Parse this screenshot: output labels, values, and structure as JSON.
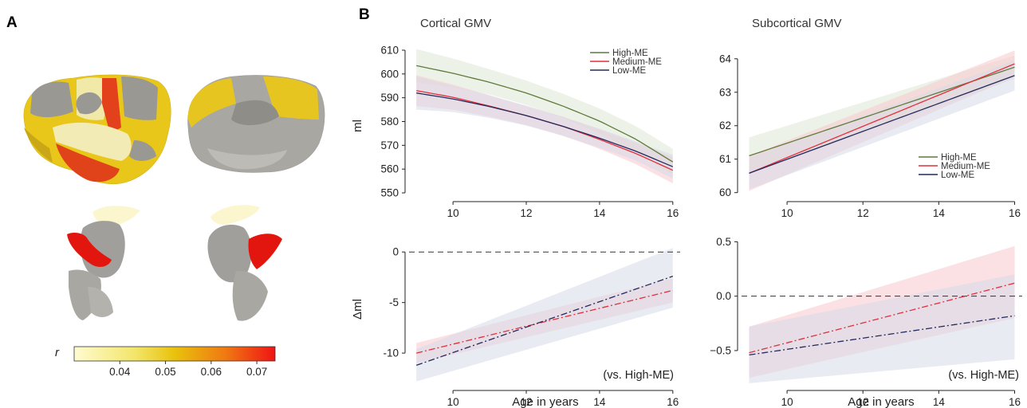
{
  "panel_a": {
    "letter": "A",
    "colorbar": {
      "label": "r",
      "ticks": [
        "0.04",
        "0.05",
        "0.06",
        "0.07"
      ],
      "tick_values": [
        0.04,
        0.05,
        0.06,
        0.07
      ],
      "range": [
        0.03,
        0.074
      ],
      "colors": [
        "#fffbd0",
        "#f3e66b",
        "#e9c20c",
        "#f07a12",
        "#f01414"
      ]
    }
  },
  "panel_b": {
    "letter": "B"
  },
  "colors": {
    "High-ME": "#5f7a3a",
    "Medium-ME": "#e0303c",
    "Low-ME": "#232a5c",
    "High-ME_band": "#dfe8d6",
    "Medium-ME_band": "#f7c9cd",
    "Low-ME_band": "#d7dae8"
  },
  "chart_data": [
    {
      "id": "cortical_top",
      "type": "line",
      "title": "Cortical GMV",
      "ylabel": "ml",
      "xlabel": "",
      "xlim": [
        8.8,
        16.2
      ],
      "ylim": [
        548,
        612
      ],
      "xticks": [
        10,
        12,
        14,
        16
      ],
      "yticks": [
        550,
        560,
        570,
        580,
        590,
        600,
        610
      ],
      "legend_placement": "top-right",
      "series": [
        {
          "name": "High-ME",
          "x": [
            9,
            10,
            11,
            12,
            13,
            14,
            15,
            16
          ],
          "y": [
            603.5,
            600.3,
            596.5,
            592.0,
            586.5,
            580.2,
            572.5,
            563.0
          ],
          "lo": [
            596.5,
            594.3,
            591.3,
            587.0,
            581.5,
            575.0,
            567.0,
            557.5
          ],
          "hi": [
            610.5,
            606.5,
            602.0,
            597.2,
            591.7,
            585.5,
            578.0,
            568.5
          ]
        },
        {
          "name": "Medium-ME",
          "x": [
            9,
            10,
            11,
            12,
            13,
            14,
            15,
            16
          ],
          "y": [
            593.0,
            590.2,
            586.5,
            582.5,
            578.0,
            572.5,
            566.5,
            559.5
          ],
          "lo": [
            586.5,
            585.0,
            582.0,
            578.5,
            574.0,
            568.5,
            562.0,
            554.0
          ],
          "hi": [
            599.5,
            595.5,
            591.0,
            586.5,
            582.0,
            576.7,
            571.0,
            565.0
          ]
        },
        {
          "name": "Low-ME",
          "x": [
            9,
            10,
            11,
            12,
            13,
            14,
            15,
            16
          ],
          "y": [
            592.0,
            589.5,
            586.3,
            582.5,
            578.0,
            573.0,
            567.5,
            561.0
          ],
          "lo": [
            585.0,
            584.0,
            581.5,
            578.3,
            574.0,
            569.0,
            563.5,
            556.0
          ],
          "hi": [
            599.0,
            595.0,
            591.0,
            586.7,
            582.0,
            577.0,
            571.5,
            566.0
          ]
        }
      ]
    },
    {
      "id": "subcortical_top",
      "type": "line",
      "title": "Subcortical GMV",
      "ylabel": "",
      "xlabel": "",
      "xlim": [
        8.8,
        16.2
      ],
      "ylim": [
        59.85,
        64.4
      ],
      "xticks": [
        10,
        12,
        14,
        16
      ],
      "yticks": [
        60,
        61,
        62,
        63,
        64
      ],
      "legend_placement": "bottom-right",
      "series": [
        {
          "name": "High-ME",
          "x": [
            9,
            16
          ],
          "y": [
            61.1,
            63.75
          ],
          "lo": [
            60.55,
            63.4
          ],
          "hi": [
            61.65,
            64.1
          ]
        },
        {
          "name": "Medium-ME",
          "x": [
            9,
            16
          ],
          "y": [
            60.58,
            63.85
          ],
          "lo": [
            60.05,
            63.45
          ],
          "hi": [
            61.1,
            64.25
          ]
        },
        {
          "name": "Low-ME",
          "x": [
            9,
            16
          ],
          "y": [
            60.58,
            63.5
          ],
          "lo": [
            60.1,
            63.05
          ],
          "hi": [
            61.05,
            63.95
          ]
        }
      ]
    },
    {
      "id": "cortical_bottom",
      "type": "line",
      "title": "",
      "ylabel": "Δml",
      "xlabel": "Age in years",
      "xlim": [
        8.8,
        16.2
      ],
      "ylim": [
        -13.3,
        2.3
      ],
      "xticks": [
        10,
        12,
        14,
        16
      ],
      "yticks": [
        0,
        -5,
        -10
      ],
      "annotation": "(vs. High-ME)",
      "reference_line": 0,
      "series": [
        {
          "name": "Medium-ME",
          "x": [
            9,
            16
          ],
          "y": [
            -10.0,
            -3.8
          ],
          "lo": [
            -11.0,
            -5.0
          ],
          "hi": [
            -9.0,
            -2.6
          ]
        },
        {
          "name": "Low-ME",
          "x": [
            9,
            16
          ],
          "y": [
            -11.2,
            -2.4
          ],
          "lo": [
            -12.8,
            -5.5
          ],
          "hi": [
            -9.6,
            0.4
          ]
        }
      ]
    },
    {
      "id": "subcortical_bottom",
      "type": "line",
      "title": "",
      "ylabel": "",
      "xlabel": "Age in years",
      "xlim": [
        8.8,
        16.2
      ],
      "ylim": [
        -0.83,
        0.62
      ],
      "xticks": [
        10,
        12,
        14,
        16
      ],
      "yticks": [
        0.5,
        0.0,
        -0.5
      ],
      "tick_labels": [
        "0.5",
        "0.0",
        "−0.5"
      ],
      "annotation": "(vs. High-ME)",
      "reference_line": 0,
      "series": [
        {
          "name": "Medium-ME",
          "x": [
            9,
            16
          ],
          "y": [
            -0.52,
            0.12
          ],
          "lo": [
            -0.75,
            -0.2
          ],
          "hi": [
            -0.28,
            0.46
          ]
        },
        {
          "name": "Low-ME",
          "x": [
            9,
            16
          ],
          "y": [
            -0.54,
            -0.18
          ],
          "lo": [
            -0.8,
            -0.58
          ],
          "hi": [
            -0.28,
            0.2
          ]
        }
      ]
    }
  ]
}
